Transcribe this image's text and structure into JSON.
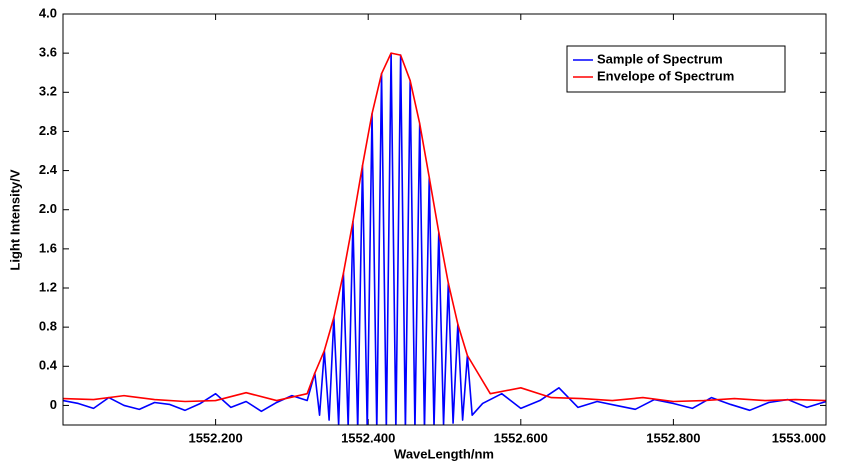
{
  "chart_data": {
    "type": "line",
    "x_label": "WaveLength/nm",
    "y_label": "Light Intensity/V",
    "xlim": [
      1552.0,
      1553.0
    ],
    "xticks": [
      {
        "value": 1552.2,
        "label": "1552.200"
      },
      {
        "value": 1552.4,
        "label": "1552.400"
      },
      {
        "value": 1552.6,
        "label": "1552.600"
      },
      {
        "value": 1552.8,
        "label": "1552.800"
      },
      {
        "value": 1553.0,
        "label": "1553.000"
      }
    ],
    "ylim": [
      -0.2,
      4.0
    ],
    "yticks": [
      0,
      0.4,
      0.8,
      1.2,
      1.6,
      {
        "value": 2,
        "label": "2.0"
      },
      2.4,
      2.8,
      3.2,
      3.6,
      {
        "value": 4,
        "label": "4.0"
      }
    ],
    "grid": false,
    "legend": "upper right",
    "series": [
      {
        "name": "Sample of Spectrum",
        "color": "#0000ff",
        "x": [
          1552.0,
          1552.02,
          1552.04,
          1552.06,
          1552.08,
          1552.1,
          1552.12,
          1552.14,
          1552.16,
          1552.18,
          1552.2,
          1552.22,
          1552.24,
          1552.26,
          1552.28,
          1552.3,
          1552.32,
          1552.33,
          1552.33625,
          1552.3425,
          1552.34875,
          1552.355,
          1552.36125,
          1552.3675,
          1552.37375,
          1552.38,
          1552.38625,
          1552.3925,
          1552.39875,
          1552.405,
          1552.41125,
          1552.4175,
          1552.42375,
          1552.43,
          1552.43625,
          1552.4425,
          1552.44875,
          1552.455,
          1552.46125,
          1552.4675,
          1552.47375,
          1552.48,
          1552.48625,
          1552.4925,
          1552.49875,
          1552.505,
          1552.51125,
          1552.5175,
          1552.52375,
          1552.53,
          1552.53625,
          1552.55,
          1552.575,
          1552.6,
          1552.625,
          1552.65,
          1552.675,
          1552.7,
          1552.725,
          1552.75,
          1552.775,
          1552.8,
          1552.825,
          1552.85,
          1552.875,
          1552.9,
          1552.925,
          1552.95,
          1552.975,
          1553.0
        ],
        "values": [
          0.05,
          0.02,
          -0.03,
          0.08,
          0.0,
          -0.04,
          0.03,
          0.01,
          -0.05,
          0.02,
          0.12,
          -0.02,
          0.04,
          -0.06,
          0.03,
          0.1,
          0.05,
          0.33,
          -0.1,
          0.56,
          -0.15,
          0.9,
          -0.2,
          1.35,
          -0.22,
          1.88,
          -0.25,
          2.45,
          -0.25,
          2.98,
          -0.25,
          3.39,
          -0.25,
          3.6,
          -0.25,
          3.58,
          -0.25,
          3.32,
          -0.25,
          2.88,
          -0.25,
          2.33,
          -0.22,
          1.77,
          -0.2,
          1.25,
          -0.18,
          0.83,
          -0.15,
          0.51,
          -0.1,
          0.02,
          0.12,
          -0.03,
          0.05,
          0.18,
          -0.02,
          0.04,
          0.0,
          -0.04,
          0.06,
          0.02,
          -0.03,
          0.08,
          0.01,
          -0.05,
          0.03,
          0.06,
          -0.02,
          0.04
        ]
      },
      {
        "name": "Envelope of Spectrum",
        "color": "#ff0000",
        "x": [
          1552.0,
          1552.04,
          1552.08,
          1552.12,
          1552.16,
          1552.2,
          1552.24,
          1552.28,
          1552.32,
          1552.33,
          1552.3425,
          1552.355,
          1552.3675,
          1552.38,
          1552.3925,
          1552.405,
          1552.4175,
          1552.43,
          1552.4425,
          1552.455,
          1552.4675,
          1552.48,
          1552.4925,
          1552.505,
          1552.5175,
          1552.53,
          1552.56,
          1552.6,
          1552.64,
          1552.68,
          1552.72,
          1552.76,
          1552.8,
          1552.84,
          1552.88,
          1552.92,
          1552.96,
          1553.0
        ],
        "values": [
          0.07,
          0.06,
          0.1,
          0.06,
          0.04,
          0.05,
          0.13,
          0.05,
          0.12,
          0.33,
          0.56,
          0.9,
          1.35,
          1.88,
          2.45,
          2.98,
          3.39,
          3.6,
          3.58,
          3.32,
          2.88,
          2.33,
          1.77,
          1.25,
          0.83,
          0.51,
          0.12,
          0.18,
          0.08,
          0.07,
          0.05,
          0.08,
          0.04,
          0.05,
          0.07,
          0.05,
          0.06,
          0.05
        ]
      }
    ]
  }
}
